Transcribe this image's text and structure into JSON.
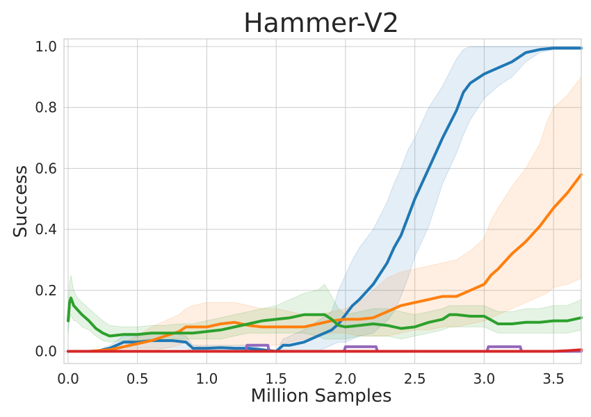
{
  "chart_data": {
    "type": "line",
    "title": "Hammer-V2",
    "xlabel": "Million Samples",
    "ylabel": "Success",
    "xlim": [
      -0.03,
      3.7
    ],
    "ylim": [
      -0.04,
      1.025
    ],
    "grid": true,
    "legend": "none",
    "x_ticks": [
      "0.0",
      "0.5",
      "1.0",
      "1.5",
      "2.0",
      "2.5",
      "3.0",
      "3.5"
    ],
    "x_tick_values": [
      0.0,
      0.5,
      1.0,
      1.5,
      2.0,
      2.5,
      3.0,
      3.5
    ],
    "y_ticks": [
      "0.0",
      "0.2",
      "0.4",
      "0.6",
      "0.8",
      "1.0"
    ],
    "y_tick_values": [
      0.0,
      0.2,
      0.4,
      0.6,
      0.8,
      1.0
    ],
    "series": [
      {
        "color": "#1f77b4",
        "x": [
          0.0,
          0.2,
          0.3,
          0.4,
          0.5,
          0.6,
          0.75,
          0.85,
          0.9,
          1.0,
          1.1,
          1.2,
          1.3,
          1.5,
          1.55,
          1.6,
          1.7,
          1.8,
          1.9,
          1.95,
          2.0,
          2.05,
          2.1,
          2.2,
          2.3,
          2.35,
          2.4,
          2.45,
          2.5,
          2.6,
          2.7,
          2.8,
          2.85,
          2.9,
          3.0,
          3.1,
          3.2,
          3.3,
          3.4,
          3.5,
          3.6,
          3.7
        ],
        "y": [
          0.0,
          0.0,
          0.01,
          0.03,
          0.03,
          0.035,
          0.035,
          0.03,
          0.01,
          0.01,
          0.012,
          0.01,
          0.01,
          0.0,
          0.02,
          0.02,
          0.03,
          0.05,
          0.07,
          0.09,
          0.12,
          0.15,
          0.17,
          0.22,
          0.29,
          0.34,
          0.38,
          0.44,
          0.5,
          0.6,
          0.7,
          0.79,
          0.85,
          0.88,
          0.91,
          0.93,
          0.95,
          0.98,
          0.99,
          0.995,
          0.995,
          0.995
        ],
        "band_upper": [
          0.0,
          0.0,
          0.02,
          0.05,
          0.05,
          0.06,
          0.06,
          0.05,
          0.02,
          0.02,
          0.02,
          0.02,
          0.02,
          0.0,
          0.04,
          0.05,
          0.07,
          0.1,
          0.13,
          0.2,
          0.25,
          0.3,
          0.34,
          0.4,
          0.49,
          0.55,
          0.6,
          0.66,
          0.7,
          0.8,
          0.87,
          0.96,
          0.99,
          1.0,
          1.0,
          1.0,
          1.0,
          1.0,
          1.0,
          1.0,
          1.0,
          1.0
        ],
        "band_lower": [
          0.0,
          0.0,
          0.0,
          0.01,
          0.01,
          0.01,
          0.01,
          0.01,
          0.0,
          0.0,
          0.0,
          0.0,
          0.0,
          0.0,
          0.0,
          0.0,
          0.0,
          0.0,
          0.02,
          0.03,
          0.03,
          0.04,
          0.05,
          0.06,
          0.1,
          0.13,
          0.18,
          0.24,
          0.31,
          0.41,
          0.55,
          0.65,
          0.71,
          0.76,
          0.83,
          0.87,
          0.9,
          0.95,
          0.98,
          0.99,
          0.99,
          0.99
        ]
      },
      {
        "color": "#ff7f0e",
        "x": [
          0.0,
          0.15,
          0.3,
          0.4,
          0.5,
          0.6,
          0.7,
          0.8,
          0.85,
          0.9,
          1.0,
          1.1,
          1.2,
          1.3,
          1.4,
          1.5,
          1.6,
          1.7,
          1.8,
          1.9,
          2.0,
          2.1,
          2.2,
          2.3,
          2.4,
          2.5,
          2.6,
          2.7,
          2.8,
          2.9,
          3.0,
          3.05,
          3.1,
          3.2,
          3.3,
          3.4,
          3.45,
          3.5,
          3.6,
          3.7
        ],
        "y": [
          0.0,
          0.0,
          0.005,
          0.015,
          0.025,
          0.035,
          0.05,
          0.065,
          0.08,
          0.08,
          0.08,
          0.09,
          0.095,
          0.085,
          0.08,
          0.08,
          0.08,
          0.08,
          0.09,
          0.1,
          0.105,
          0.105,
          0.11,
          0.13,
          0.15,
          0.16,
          0.17,
          0.18,
          0.18,
          0.2,
          0.22,
          0.25,
          0.27,
          0.32,
          0.36,
          0.41,
          0.44,
          0.47,
          0.52,
          0.58
        ],
        "band_upper": [
          0.0,
          0.0,
          0.01,
          0.03,
          0.05,
          0.08,
          0.1,
          0.12,
          0.14,
          0.15,
          0.16,
          0.16,
          0.16,
          0.15,
          0.14,
          0.14,
          0.13,
          0.12,
          0.12,
          0.13,
          0.14,
          0.16,
          0.2,
          0.24,
          0.26,
          0.27,
          0.28,
          0.29,
          0.3,
          0.33,
          0.37,
          0.43,
          0.47,
          0.54,
          0.6,
          0.68,
          0.75,
          0.8,
          0.84,
          0.9
        ],
        "band_lower": [
          0.0,
          0.0,
          0.0,
          0.0,
          0.0,
          0.0,
          0.01,
          0.02,
          0.03,
          0.02,
          0.01,
          0.01,
          0.02,
          0.02,
          0.02,
          0.02,
          0.03,
          0.04,
          0.05,
          0.06,
          0.06,
          0.05,
          0.05,
          0.05,
          0.06,
          0.07,
          0.07,
          0.08,
          0.08,
          0.09,
          0.1,
          0.11,
          0.12,
          0.14,
          0.16,
          0.18,
          0.19,
          0.21,
          0.22,
          0.24
        ]
      },
      {
        "color": "#2ca02c",
        "x": [
          0.0,
          0.01,
          0.02,
          0.04,
          0.06,
          0.1,
          0.15,
          0.2,
          0.25,
          0.3,
          0.4,
          0.5,
          0.6,
          0.7,
          0.8,
          0.9,
          1.0,
          1.1,
          1.2,
          1.3,
          1.4,
          1.5,
          1.6,
          1.7,
          1.8,
          1.85,
          1.9,
          1.95,
          2.0,
          2.1,
          2.2,
          2.3,
          2.4,
          2.5,
          2.6,
          2.7,
          2.75,
          2.8,
          2.9,
          3.0,
          3.1,
          3.2,
          3.3,
          3.4,
          3.5,
          3.6,
          3.7
        ],
        "y": [
          0.1,
          0.16,
          0.175,
          0.15,
          0.14,
          0.12,
          0.1,
          0.075,
          0.06,
          0.05,
          0.055,
          0.055,
          0.06,
          0.06,
          0.06,
          0.06,
          0.065,
          0.07,
          0.08,
          0.09,
          0.1,
          0.105,
          0.11,
          0.12,
          0.12,
          0.12,
          0.105,
          0.085,
          0.08,
          0.085,
          0.09,
          0.085,
          0.075,
          0.08,
          0.095,
          0.105,
          0.12,
          0.12,
          0.115,
          0.115,
          0.09,
          0.09,
          0.095,
          0.095,
          0.1,
          0.1,
          0.11
        ],
        "band_upper": [
          0.15,
          0.22,
          0.25,
          0.2,
          0.18,
          0.16,
          0.14,
          0.12,
          0.1,
          0.085,
          0.08,
          0.08,
          0.085,
          0.085,
          0.09,
          0.09,
          0.1,
          0.11,
          0.12,
          0.13,
          0.14,
          0.15,
          0.17,
          0.19,
          0.2,
          0.22,
          0.18,
          0.14,
          0.12,
          0.13,
          0.14,
          0.14,
          0.13,
          0.12,
          0.13,
          0.14,
          0.15,
          0.15,
          0.15,
          0.15,
          0.13,
          0.13,
          0.14,
          0.14,
          0.15,
          0.15,
          0.17
        ],
        "band_lower": [
          0.06,
          0.1,
          0.12,
          0.1,
          0.1,
          0.08,
          0.07,
          0.05,
          0.035,
          0.03,
          0.035,
          0.035,
          0.04,
          0.04,
          0.04,
          0.04,
          0.04,
          0.04,
          0.05,
          0.06,
          0.06,
          0.06,
          0.06,
          0.06,
          0.05,
          0.04,
          0.04,
          0.04,
          0.04,
          0.05,
          0.05,
          0.05,
          0.04,
          0.05,
          0.06,
          0.07,
          0.08,
          0.08,
          0.08,
          0.08,
          0.06,
          0.06,
          0.06,
          0.06,
          0.06,
          0.06,
          0.07
        ]
      },
      {
        "color": "#9467bd",
        "x": [
          0.0,
          1.28,
          1.29,
          1.44,
          1.45,
          1.99,
          2.0,
          2.22,
          2.23,
          3.02,
          3.03,
          3.26,
          3.27,
          3.7
        ],
        "y": [
          0.0,
          0.0,
          0.02,
          0.02,
          0.0,
          0.0,
          0.015,
          0.015,
          0.0,
          0.0,
          0.015,
          0.015,
          0.0,
          0.0
        ]
      },
      {
        "color": "#d62728",
        "x": [
          0.0,
          3.5,
          3.6,
          3.7
        ],
        "y": [
          0.0,
          0.0,
          0.002,
          0.005
        ]
      }
    ]
  }
}
